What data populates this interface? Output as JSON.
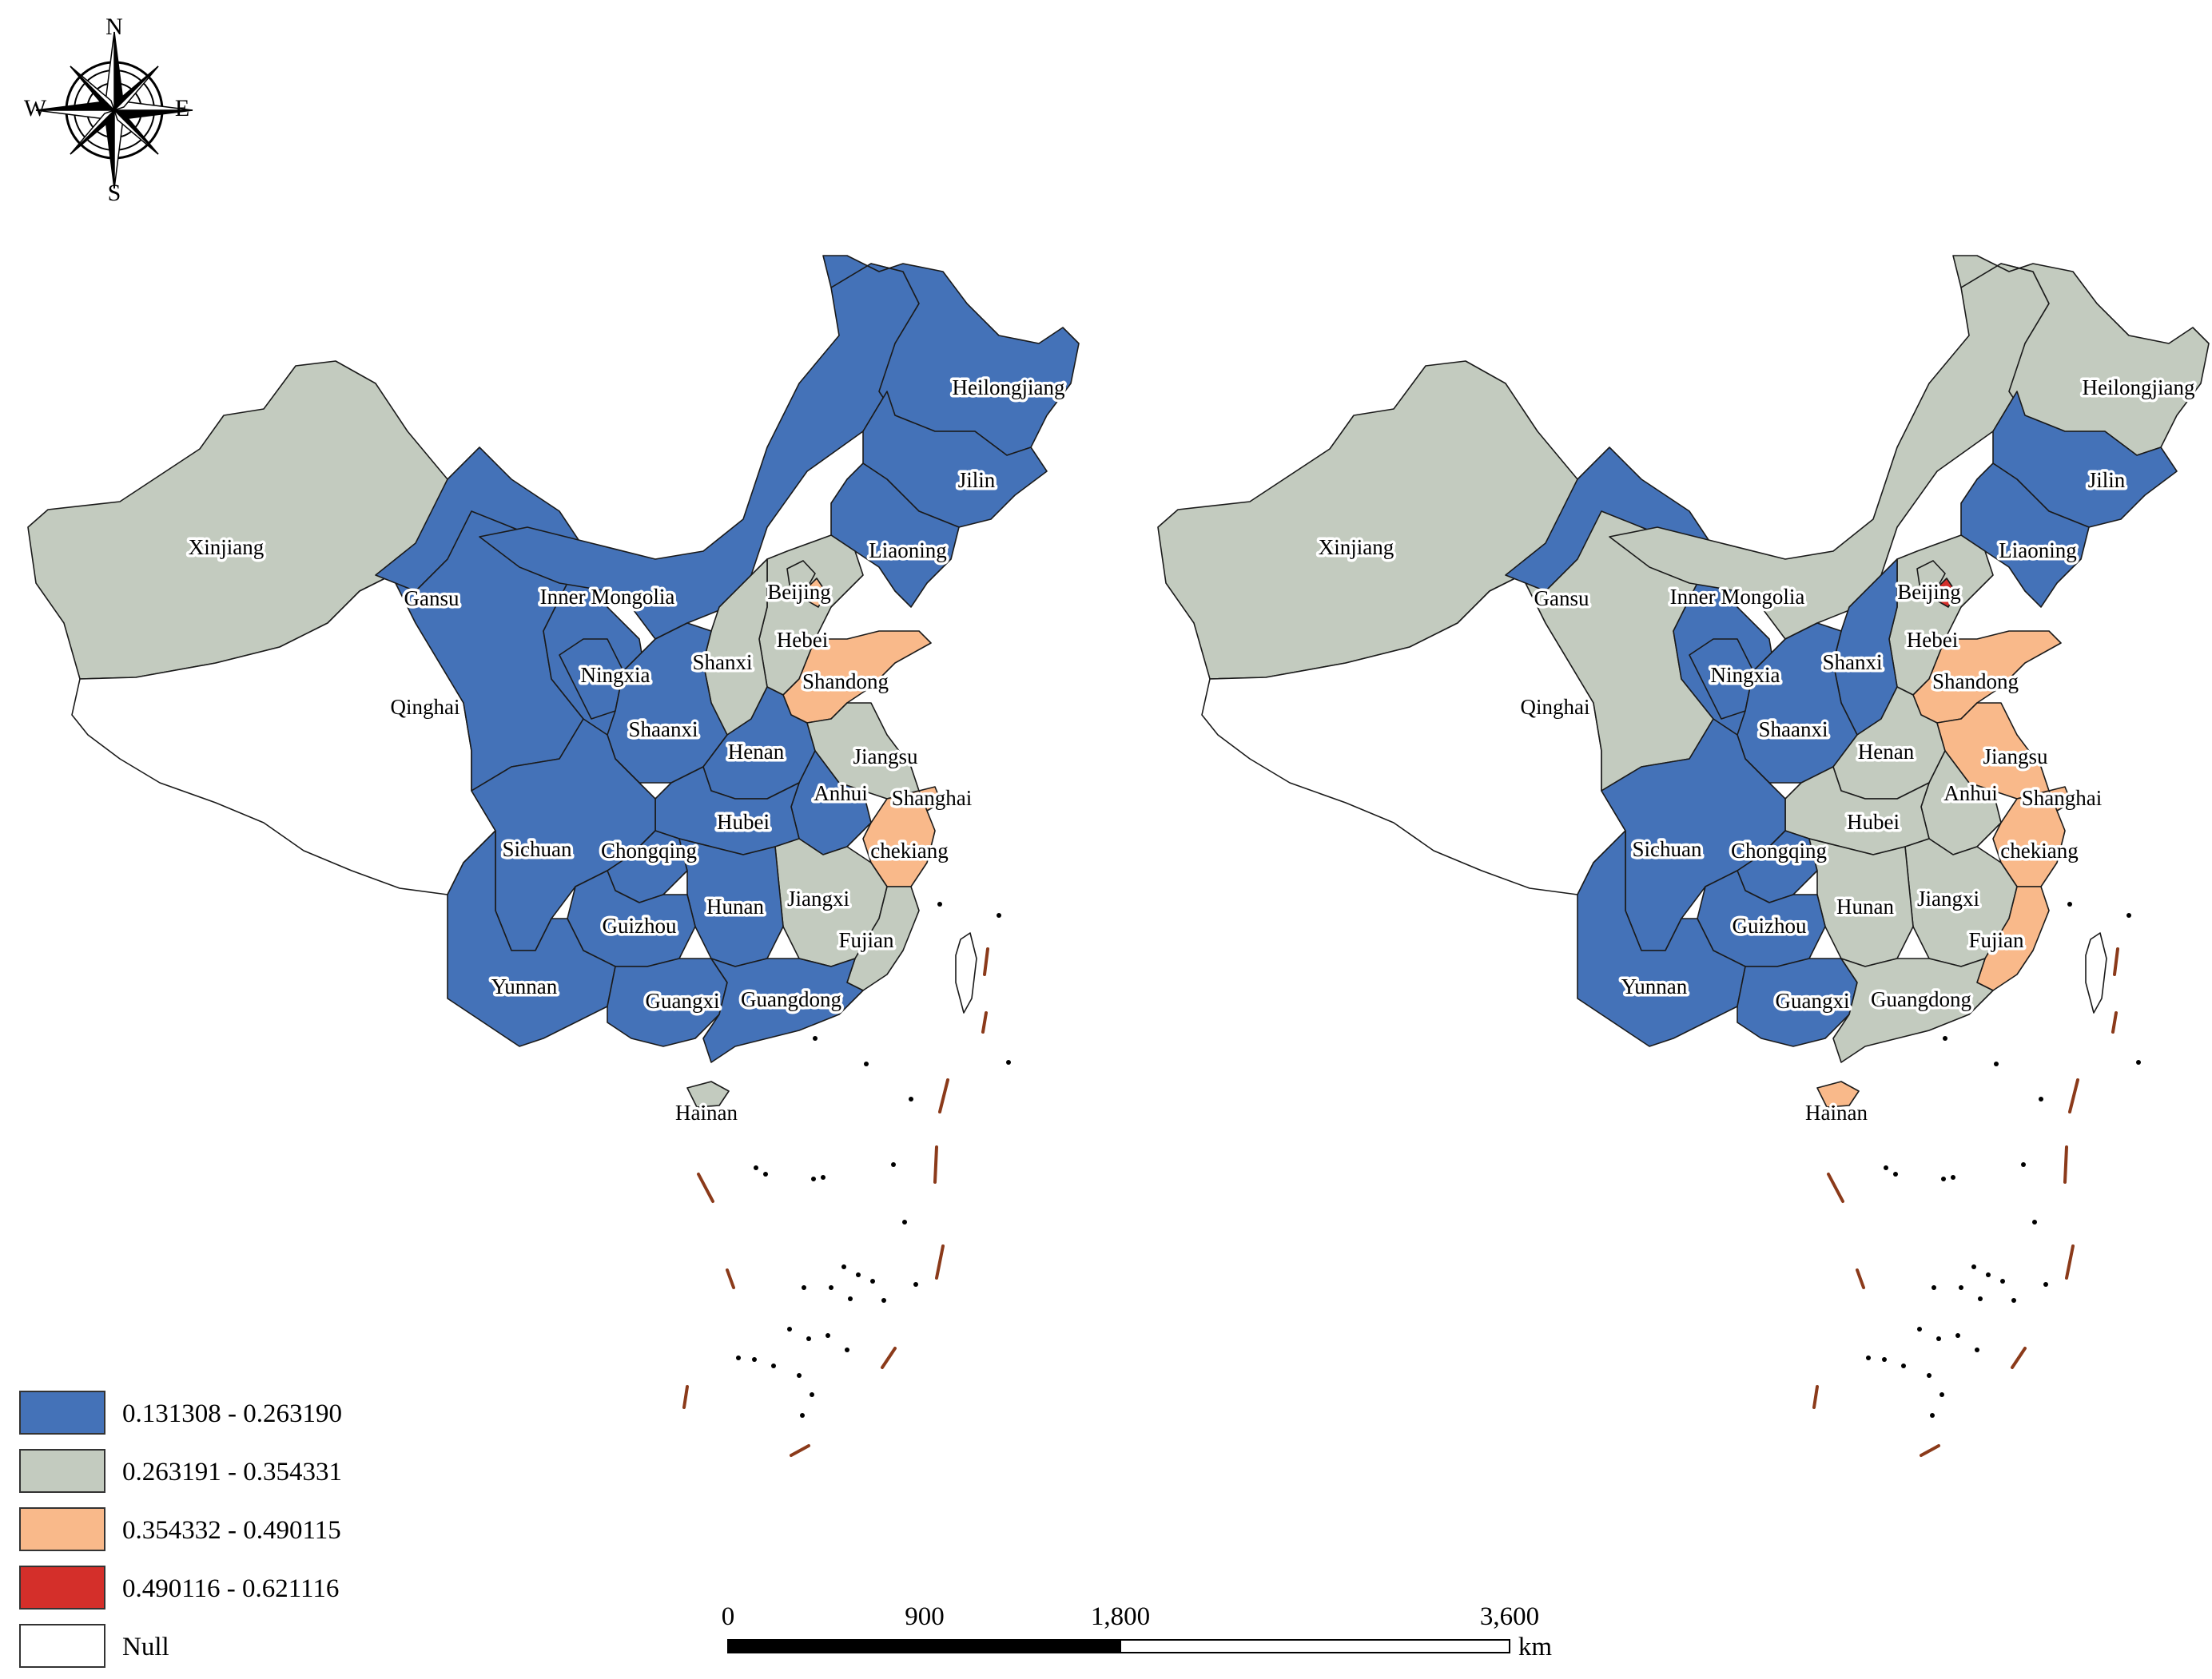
{
  "colors": {
    "class1": "#4472b8",
    "class2": "#c3cbbf",
    "class3": "#f9b98a",
    "class4": "#d42f2a",
    "null": "#ffffff",
    "nine_dash": "#8b3a1a"
  },
  "compass": {
    "n": "N",
    "s": "S",
    "e": "E",
    "w": "W"
  },
  "legend": [
    {
      "label": "0.131308 - 0.263190",
      "cls": "class1"
    },
    {
      "label": "0.263191 - 0.354331",
      "cls": "class2"
    },
    {
      "label": "0.354332 - 0.490115",
      "cls": "class3"
    },
    {
      "label": "0.490116 - 0.621116",
      "cls": "class4"
    },
    {
      "label": "Null",
      "cls": "null"
    }
  ],
  "scale_bar": {
    "ticks": [
      "0",
      "900",
      "1,800",
      "3,600"
    ],
    "unit": "km"
  },
  "maps": [
    {
      "provinces": {
        "Xinjiang": "class2",
        "Tibet": "null",
        "Gansu": "class1",
        "Qinghai": "class1",
        "Inner Mongolia": "class1",
        "Heilongjiang": "class1",
        "Jilin": "class1",
        "Liaoning": "class1",
        "Beijing": "class2",
        "Hebei": "class2",
        "Shanxi": "class2",
        "Shandong": "class3",
        "Ningxia": "class1",
        "Shaanxi": "class1",
        "Henan": "class1",
        "Jiangsu": "class2",
        "Anhui": "class1",
        "Shanghai": "class3",
        "Hubei": "class1",
        "Sichuan": "class1",
        "Chongqing": "class1",
        "chekiang": "class3",
        "Jiangxi": "class2",
        "Hunan": "class1",
        "Guizhou": "class1",
        "Fujian": "class2",
        "Yunnan": "class1",
        "Guangxi": "class1",
        "Guangdong": "class1",
        "Hainan": "class2",
        "Tianjin": "class3",
        "Taiwan": "null"
      },
      "labels": [
        "Xinjiang",
        "Gansu",
        "Inner Mongolia",
        "Heilongjiang",
        "Jilin",
        "Liaoning",
        "Beijing",
        "Hebei",
        "Shanxi",
        "Shandong",
        "Qinghai",
        "Ningxia",
        "Shaanxi",
        "Henan",
        "Jiangsu",
        "Anhui",
        "Shanghai",
        "Hubei",
        "Sichuan",
        "Chongqing",
        "chekiang",
        "Jiangxi",
        "Hunan",
        "Guizhou",
        "Fujian",
        "Yunnan",
        "Guangxi",
        "Guangdong",
        "Hainan"
      ]
    },
    {
      "provinces": {
        "Xinjiang": "class2",
        "Tibet": "null",
        "Gansu": "class1",
        "Qinghai": "class2",
        "Inner Mongolia": "class2",
        "Heilongjiang": "class2",
        "Jilin": "class1",
        "Liaoning": "class1",
        "Beijing": "class2",
        "Hebei": "class2",
        "Shanxi": "class1",
        "Shandong": "class3",
        "Ningxia": "class1",
        "Shaanxi": "class1",
        "Henan": "class2",
        "Jiangsu": "class3",
        "Anhui": "class2",
        "Shanghai": "class3",
        "Hubei": "class2",
        "Sichuan": "class1",
        "Chongqing": "class1",
        "chekiang": "class3",
        "Jiangxi": "class2",
        "Hunan": "class2",
        "Guizhou": "class1",
        "Fujian": "class3",
        "Yunnan": "class1",
        "Guangxi": "class1",
        "Guangdong": "class2",
        "Hainan": "class3",
        "Tianjin": "class4",
        "Taiwan": "null"
      },
      "labels": [
        "Xinjiang",
        "Gansu",
        "Inner Mongolia",
        "Heilongjiang",
        "Jilin",
        "Liaoning",
        "Beijing",
        "Hebei",
        "Shanxi",
        "Shandong",
        "Qinghai",
        "Ningxia",
        "Shaanxi",
        "Henan",
        "Jiangsu",
        "Anhui",
        "Shanghai",
        "Hubei",
        "Sichuan",
        "Chongqing",
        "chekiang",
        "Jiangxi",
        "Hunan",
        "Guizhou",
        "Fujian",
        "Yunnan",
        "Guangxi",
        "Guangdong",
        "Hainan"
      ]
    }
  ]
}
